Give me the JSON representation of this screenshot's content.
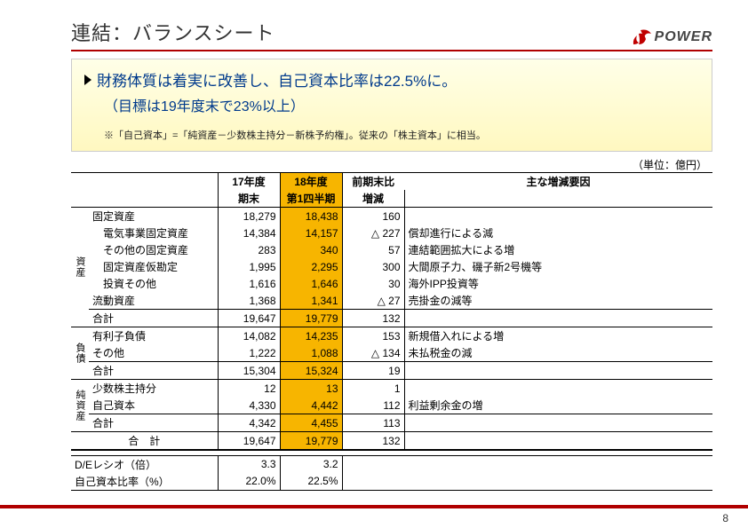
{
  "page_number": "8",
  "title": "連結：バランスシート",
  "logo_text": "POWER",
  "colors": {
    "accent_red": "#b00000",
    "highlight": "#f7b500",
    "callout_bg_top": "#ffffe8",
    "callout_bg_bot": "#fff8c0",
    "callout_text": "#003a8c"
  },
  "callout": {
    "line1": "財務体質は着実に改善し、自己資本比率は22.5%に。",
    "line2": "（目標は19年度末で23%以上）",
    "note": "※「自己資本」=「純資産－少数株主持分－新株予約権」。従来の「株主資本」に相当。"
  },
  "unit_label": "（単位：億円）",
  "columns": {
    "year1": "17年度",
    "year2": "18年度",
    "sub1": "期末",
    "sub2": "第1四半期",
    "diff_head": "前期末比",
    "diff_sub": "増減",
    "note_head": "主な増減要因"
  },
  "sections": [
    {
      "cat": "資産",
      "rows": [
        {
          "label": "固定資産",
          "v1": "18,279",
          "v2": "18,438",
          "diff": "160",
          "note": ""
        },
        {
          "label": "　電気事業固定資産",
          "v1": "14,384",
          "v2": "14,157",
          "diff": "△ 227",
          "note": "償却進行による減"
        },
        {
          "label": "　その他の固定資産",
          "v1": "283",
          "v2": "340",
          "diff": "57",
          "note": "連結範囲拡大による増"
        },
        {
          "label": "　固定資産仮勘定",
          "v1": "1,995",
          "v2": "2,295",
          "diff": "300",
          "note": "大間原子力、磯子新2号機等"
        },
        {
          "label": "　投資その他",
          "v1": "1,616",
          "v2": "1,646",
          "diff": "30",
          "note": "海外IPP投資等"
        },
        {
          "label": "流動資産",
          "v1": "1,368",
          "v2": "1,341",
          "diff": "△ 27",
          "note": "売掛金の減等"
        },
        {
          "label": "合計",
          "v1": "19,647",
          "v2": "19,779",
          "diff": "132",
          "note": "",
          "total": true
        }
      ]
    },
    {
      "cat": "負債",
      "rows": [
        {
          "label": "有利子負債",
          "v1": "14,082",
          "v2": "14,235",
          "diff": "153",
          "note": "新規借入れによる増"
        },
        {
          "label": "その他",
          "v1": "1,222",
          "v2": "1,088",
          "diff": "△ 134",
          "note": "未払税金の減"
        },
        {
          "label": "合計",
          "v1": "15,304",
          "v2": "15,324",
          "diff": "19",
          "note": "",
          "total": true
        }
      ]
    },
    {
      "cat": "純資産",
      "rows": [
        {
          "label": "少数株主持分",
          "v1": "12",
          "v2": "13",
          "diff": "1",
          "note": ""
        },
        {
          "label": "自己資本",
          "v1": "4,330",
          "v2": "4,442",
          "diff": "112",
          "note": "利益剰余金の増"
        },
        {
          "label": "合計",
          "v1": "4,342",
          "v2": "4,455",
          "diff": "113",
          "note": "",
          "total": true
        }
      ]
    }
  ],
  "grand_total": {
    "label": "合　計",
    "v1": "19,647",
    "v2": "19,779",
    "diff": "132"
  },
  "ratios": [
    {
      "label": "D/Eレシオ（倍）",
      "v1": "3.3",
      "v2": "3.2"
    },
    {
      "label": "自己資本比率（%）",
      "v1": "22.0%",
      "v2": "22.5%"
    }
  ]
}
